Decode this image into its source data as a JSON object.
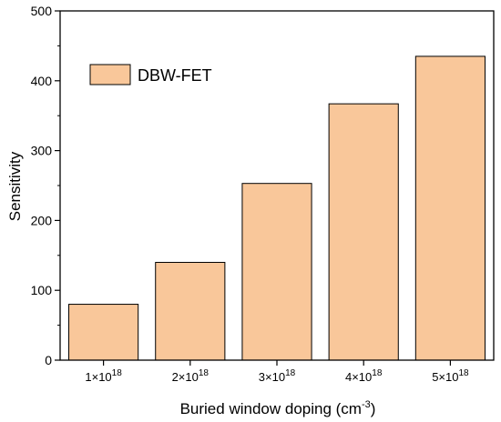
{
  "chart_data": {
    "type": "bar",
    "categories": [
      {
        "base": "1×10",
        "exp": "18"
      },
      {
        "base": "2×10",
        "exp": "18"
      },
      {
        "base": "3×10",
        "exp": "18"
      },
      {
        "base": "4×10",
        "exp": "18"
      },
      {
        "base": "5×10",
        "exp": "18"
      }
    ],
    "series": [
      {
        "name": "DBW-FET",
        "values": [
          80,
          140,
          253,
          367,
          435
        ]
      }
    ],
    "xlabel": {
      "text": "Buried window doping (cm",
      "sup": "-3",
      "tail": ")"
    },
    "ylabel": "Sensitivity",
    "ylim": [
      0,
      500
    ],
    "yticks": [
      "0",
      "100",
      "200",
      "300",
      "400",
      "500"
    ],
    "legend_position": "top-left",
    "colors": {
      "bar_fill": "#F9C79A",
      "bar_stroke": "#000000"
    }
  }
}
